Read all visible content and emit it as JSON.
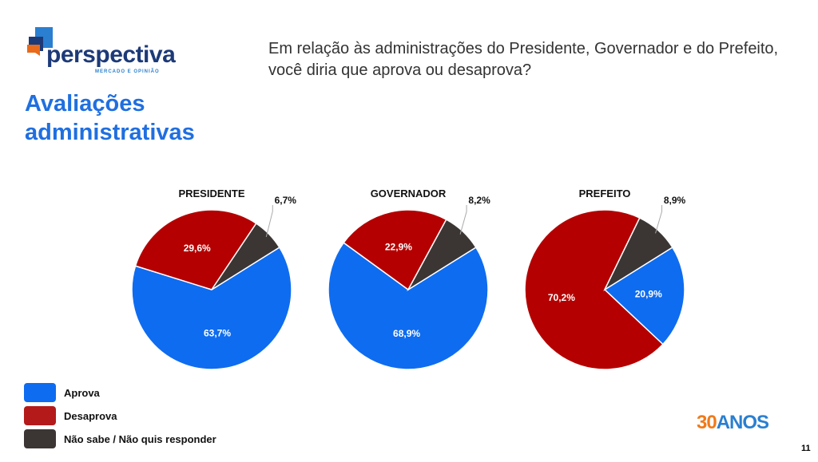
{
  "logo": {
    "name": "perspectiva",
    "tagline": "MERCADO E OPINIÃO"
  },
  "title_line1": "Avaliações",
  "title_line2": "administrativas",
  "question": "Em relação às administrações do Presidente, Governador e do Prefeito, você diria que aprova ou desaprova?",
  "chart_data": [
    {
      "type": "pie",
      "title": "PRESIDENTE",
      "categories": [
        "Aprova",
        "Desaprova",
        "Não sabe / Não quis responder"
      ],
      "values": [
        63.7,
        29.6,
        6.7
      ],
      "labels": [
        "63,7%",
        "29,6%",
        "6,7%"
      ]
    },
    {
      "type": "pie",
      "title": "GOVERNADOR",
      "categories": [
        "Aprova",
        "Desaprova",
        "Não sabe / Não quis responder"
      ],
      "values": [
        68.9,
        22.9,
        8.2
      ],
      "labels": [
        "68,9%",
        "22,9%",
        "8,2%"
      ]
    },
    {
      "type": "pie",
      "title": "PREFEITO",
      "categories": [
        "Aprova",
        "Desaprova",
        "Não sabe / Não quis responder"
      ],
      "values": [
        20.9,
        70.2,
        8.9
      ],
      "labels": [
        "20,9%",
        "70,2%",
        "8,9%"
      ]
    }
  ],
  "colors": {
    "aprova": "#0e6cf0",
    "desaprova": "#b40000",
    "nao_sabe": "#3b3634"
  },
  "legend": [
    "Aprova",
    "Desaprova",
    "Não sabe / Não quis responder"
  ],
  "badge": {
    "number": "30",
    "text": "ANOS"
  },
  "page_number": "11"
}
